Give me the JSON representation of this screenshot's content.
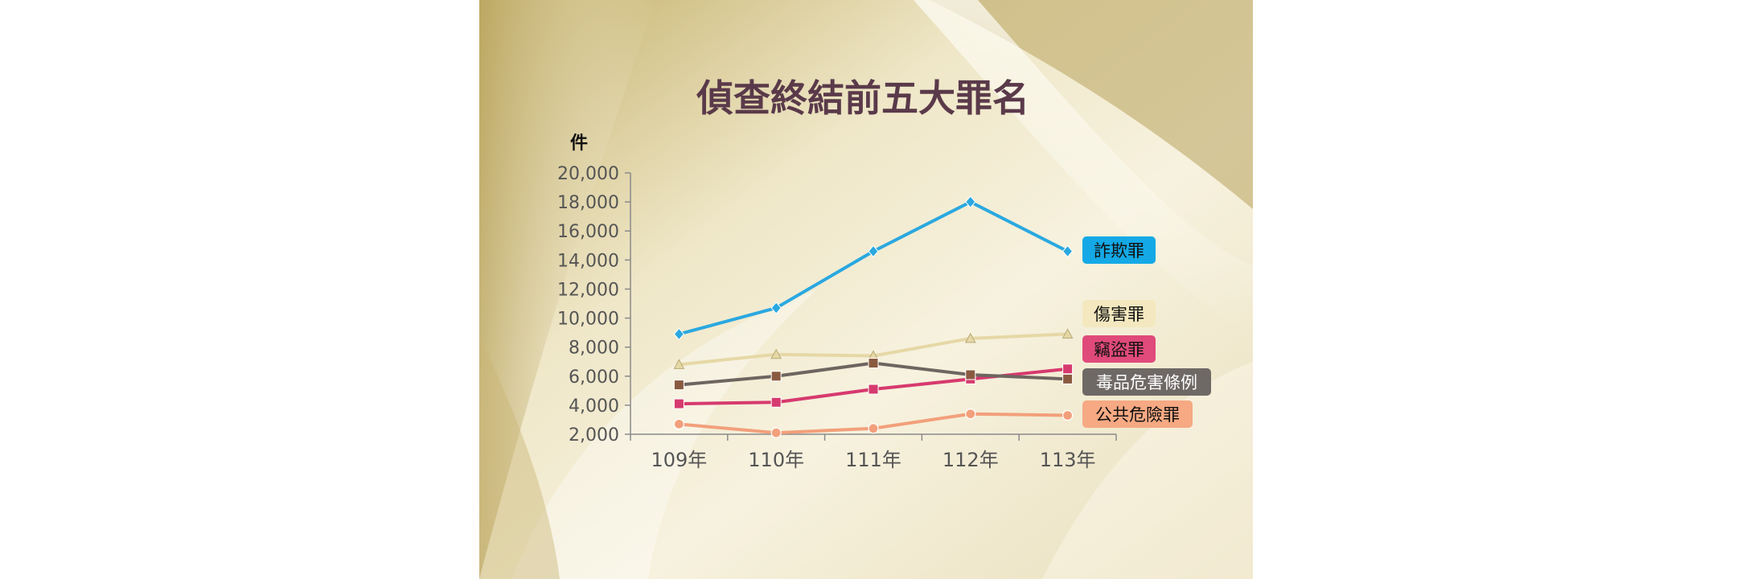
{
  "chart_data": {
    "type": "line",
    "title": "偵查終結前五大罪名",
    "ylabel": "件",
    "xlabel": "",
    "categories": [
      "109年",
      "110年",
      "111年",
      "112年",
      "113年"
    ],
    "ylim": [
      2000,
      20000
    ],
    "yticks": [
      "2,000",
      "4,000",
      "6,000",
      "8,000",
      "10,000",
      "12,000",
      "14,000",
      "16,000",
      "18,000",
      "20,000"
    ],
    "series": [
      {
        "name": "詐欺罪",
        "values": [
          8900,
          10700,
          14600,
          18000,
          14600
        ],
        "color": "#2aa8e0",
        "marker": "diamond"
      },
      {
        "name": "傷害罪",
        "values": [
          6800,
          7500,
          7400,
          8600,
          8900
        ],
        "color": "#e6d8a6",
        "marker": "triangle"
      },
      {
        "name": "竊盜罪",
        "values": [
          4100,
          4200,
          5100,
          5800,
          6500
        ],
        "color": "#d63a6e",
        "marker": "square"
      },
      {
        "name": "毒品危害條例",
        "values": [
          5400,
          6000,
          6900,
          6100,
          5800
        ],
        "color": "#6e6560",
        "marker": "square"
      },
      {
        "name": "公共危險罪",
        "values": [
          2700,
          2100,
          2400,
          3400,
          3300
        ],
        "color": "#f2a07b",
        "marker": "circle"
      }
    ],
    "grid": false,
    "legend": "right (labels at line ends)"
  },
  "colors": {
    "title": "#5a3a4a",
    "axis": "#8a8a8a",
    "tick_text": "#555555",
    "background": "#d8c98f"
  }
}
